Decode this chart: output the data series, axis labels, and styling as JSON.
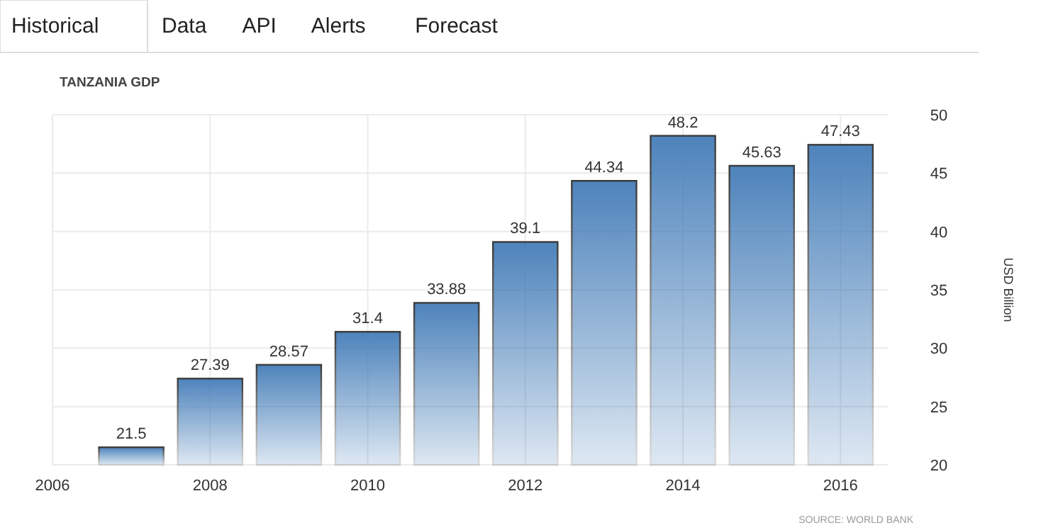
{
  "chart_data": {
    "type": "bar",
    "title": "TANZANIA GDP",
    "ylabel": "USD Billion",
    "x": [
      2007,
      2008,
      2009,
      2010,
      2011,
      2012,
      2013,
      2014,
      2015,
      2016
    ],
    "values": [
      21.5,
      27.39,
      28.57,
      31.4,
      33.88,
      39.1,
      44.34,
      48.2,
      45.63,
      47.43
    ],
    "color": "#3f79b6",
    "data_labels": true,
    "xlim": [
      2006,
      2016.6
    ],
    "xticks": [
      2006,
      2008,
      2010,
      2012,
      2014,
      2016
    ],
    "ylim": [
      20,
      50
    ],
    "yticks": [
      20,
      25,
      30,
      35,
      40,
      45,
      50
    ],
    "grid": true,
    "annotations": [
      "Historical",
      "Data",
      "API",
      "Alerts",
      "Forecast",
      "SOURCE: WORLD BANK"
    ]
  }
}
